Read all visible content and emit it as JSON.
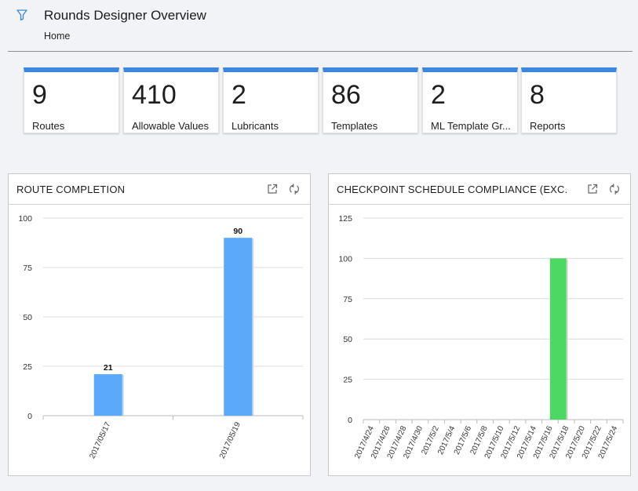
{
  "header": {
    "title": "Rounds Designer Overview",
    "breadcrumb": "Home",
    "filter_icon": "filter-icon"
  },
  "tiles": [
    {
      "value": "9",
      "label": "Routes"
    },
    {
      "value": "410",
      "label": "Allowable Values"
    },
    {
      "value": "2",
      "label": "Lubricants"
    },
    {
      "value": "86",
      "label": "Templates"
    },
    {
      "value": "2",
      "label": "ML Template Gr..."
    },
    {
      "value": "8",
      "label": "Reports"
    }
  ],
  "colors": {
    "accent": "#3b87dd",
    "bar_blue": "#5aa9fb",
    "bar_green": "#4bd863"
  },
  "cards": {
    "route": {
      "title": "ROUTE COMPLETION",
      "icons": [
        "external-link-icon",
        "refresh-icon"
      ]
    },
    "checkpoint": {
      "title": "CHECKPOINT SCHEDULE COMPLIANCE (EXC.",
      "icons": [
        "external-link-icon",
        "refresh-icon"
      ]
    }
  },
  "chart_data": [
    {
      "type": "bar",
      "title": "ROUTE COMPLETION",
      "categories": [
        "2017/05/17",
        "2017/05/19"
      ],
      "values": [
        21,
        90
      ],
      "data_labels": [
        "21",
        "90"
      ],
      "ylim": [
        0,
        100
      ],
      "yticks": [
        0,
        25,
        50,
        75,
        100
      ],
      "grid": true,
      "color": "#5aa9fb"
    },
    {
      "type": "bar",
      "title": "CHECKPOINT SCHEDULE COMPLIANCE (EXC.",
      "categories": [
        "2017/4/24",
        "2017/4/26",
        "2017/4/28",
        "2017/4/30",
        "2017/5/2",
        "2017/5/4",
        "2017/5/6",
        "2017/5/8",
        "2017/5/10",
        "2017/5/12",
        "2017/5/14",
        "2017/5/16",
        "2017/5/18",
        "2017/5/20",
        "2017/5/22",
        "2017/5/24"
      ],
      "bars": [
        {
          "from": "2017/5/16",
          "to": "2017/5/18",
          "value": 100
        }
      ],
      "ylim": [
        0,
        125
      ],
      "yticks": [
        0,
        25,
        50,
        75,
        100,
        125
      ],
      "grid": true,
      "color": "#4bd863"
    }
  ]
}
